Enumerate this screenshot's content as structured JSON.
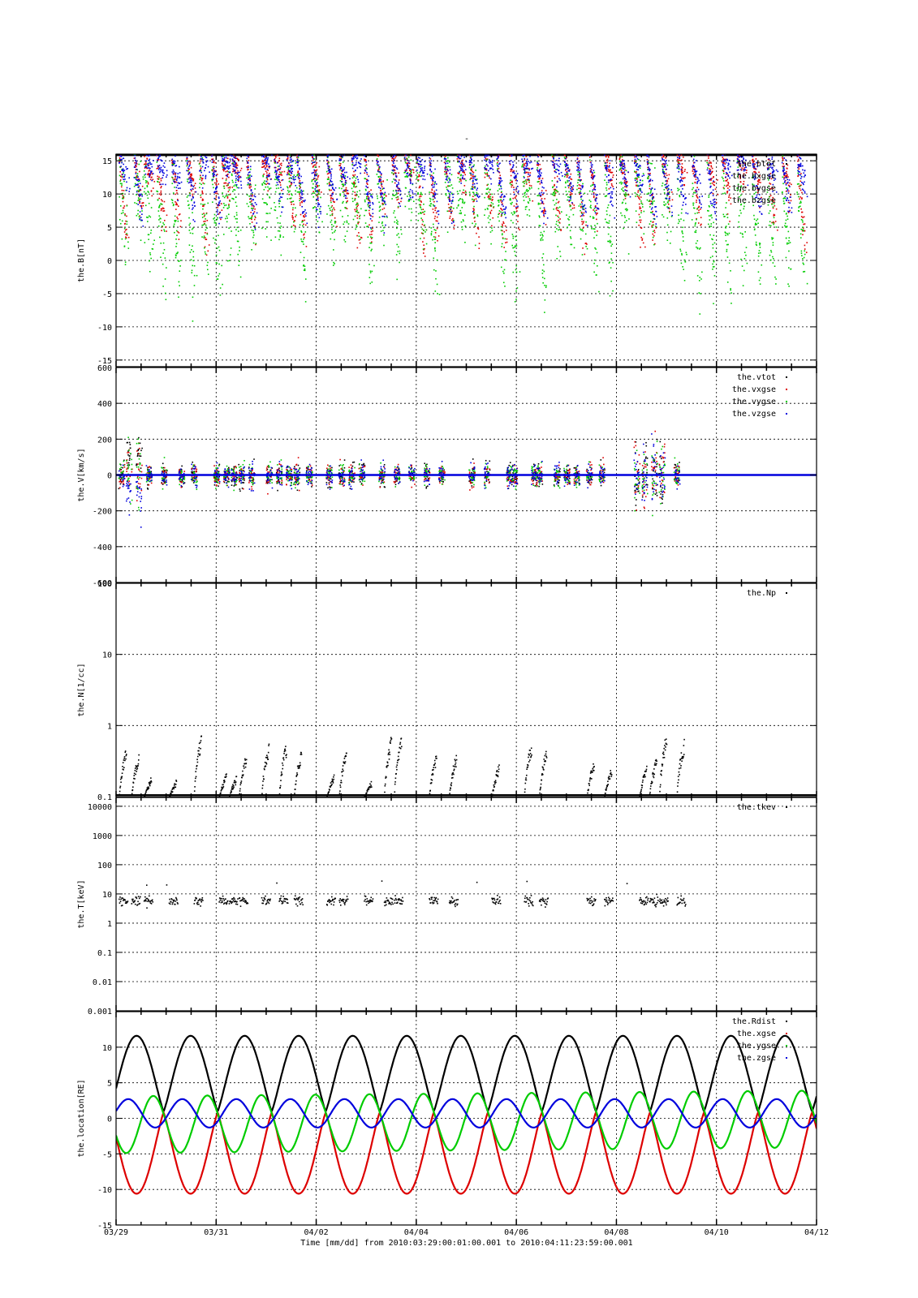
{
  "title": "-",
  "xaxis": {
    "label": "Time [mm/dd]  from 2010:03:29:00:01:00.001  to  2010:04:11:23:59:00.001",
    "ticks": [
      "03/29",
      "03/31",
      "04/02",
      "04/04",
      "04/06",
      "04/08",
      "04/10",
      "04/12"
    ],
    "days_range": [
      0,
      14
    ]
  },
  "colors": {
    "black": "#000000",
    "red": "#dd0000",
    "green": "#00cc00",
    "blue": "#0000dd",
    "grid": "#000000"
  },
  "chart_data": [
    {
      "id": "B",
      "type": "scatter",
      "ylabel": "the.B[nT]",
      "ylim": [
        -16,
        16
      ],
      "yscale": "linear",
      "yticks": [
        -15,
        -10,
        -5,
        0,
        5,
        10,
        15
      ],
      "legend": [
        "the.btot",
        "the.bxgse",
        "the.bygse",
        "the.bzgse"
      ],
      "legend_position": "top-right",
      "grid": true,
      "series": [
        {
          "name": "the.btot",
          "color": "black",
          "mean": 16,
          "spread": 0.05
        },
        {
          "name": "the.bxgse",
          "color": "red",
          "mean": 8,
          "spread": 9
        },
        {
          "name": "the.bygse",
          "color": "green",
          "mean": 3,
          "spread": 8
        },
        {
          "name": "the.bzgse",
          "color": "blue",
          "mean": 9,
          "spread": 6
        }
      ]
    },
    {
      "id": "V",
      "type": "scatter",
      "ylabel": "the.V[km/s]",
      "ylim": [
        -600,
        600
      ],
      "yscale": "linear",
      "yticks": [
        -600,
        -400,
        -200,
        0,
        200,
        400,
        600
      ],
      "legend": [
        "the.vtot",
        "the.vxgse",
        "the.vygse",
        "the.vzgse"
      ],
      "legend_position": "top-right",
      "grid": true,
      "series": [
        {
          "name": "the.vtot",
          "color": "black"
        },
        {
          "name": "the.vxgse",
          "color": "red"
        },
        {
          "name": "the.vygse",
          "color": "green"
        },
        {
          "name": "the.vzgse",
          "color": "blue"
        }
      ]
    },
    {
      "id": "N",
      "type": "scatter",
      "ylabel": "the.N[1/cc]",
      "ylim": [
        0.1,
        100
      ],
      "yscale": "log",
      "yticks": [
        0.1,
        1,
        10,
        100
      ],
      "yticklabels": [
        "0.1",
        "1",
        "10",
        "100"
      ],
      "legend": [
        "the.Np"
      ],
      "legend_position": "top-right",
      "grid": true,
      "series": [
        {
          "name": "the.Np",
          "color": "black",
          "typical_range": [
            0.1,
            0.9
          ]
        }
      ]
    },
    {
      "id": "T",
      "type": "scatter",
      "ylabel": "the.T[keV]",
      "ylim": [
        0.001,
        20000
      ],
      "yscale": "log",
      "yticks": [
        0.001,
        0.01,
        0.1,
        1,
        10,
        100,
        1000,
        10000
      ],
      "yticklabels": [
        "0.001",
        "0.01",
        "0.1",
        "1",
        "10",
        "100",
        "1000",
        "10000"
      ],
      "legend": [
        "the.tkev"
      ],
      "legend_position": "top-right",
      "grid": true,
      "series": [
        {
          "name": "the.tkev",
          "color": "black",
          "typical_value": 6
        }
      ]
    },
    {
      "id": "Loc",
      "type": "line",
      "ylabel": "the.location[RE]",
      "ylim": [
        -15,
        15
      ],
      "yscale": "linear",
      "yticks": [
        -15,
        -10,
        -5,
        0,
        5,
        10
      ],
      "legend": [
        "the.Rdist",
        "the.xgse",
        "the.ygse",
        "the.zgse"
      ],
      "legend_position": "top-right",
      "grid": true,
      "series": [
        {
          "name": "the.Rdist",
          "color": "black",
          "amplitude": 11.5,
          "period_days": 1.08
        },
        {
          "name": "the.xgse",
          "color": "red",
          "amplitude": 11.5,
          "period_days": 1.08
        },
        {
          "name": "the.ygse",
          "color": "green",
          "amplitude": 4.5,
          "period_days": 1.08
        },
        {
          "name": "the.zgse",
          "color": "blue",
          "amplitude": 2.7,
          "period_days": 1.08
        }
      ]
    }
  ]
}
